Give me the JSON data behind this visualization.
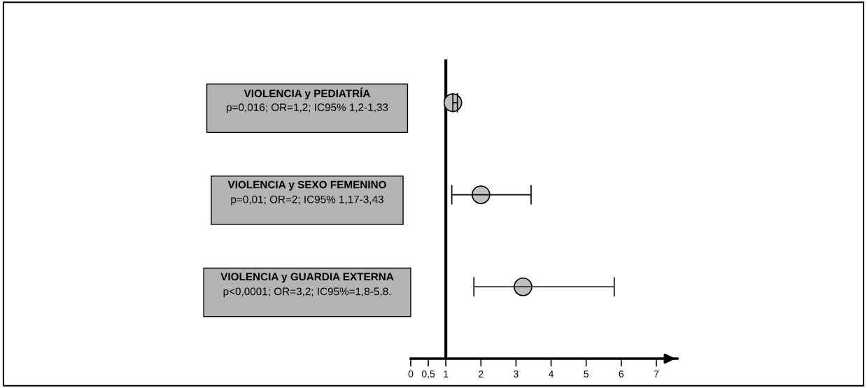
{
  "chart_data": {
    "type": "scatter",
    "orientation": "horizontal",
    "categories": [
      "VIOLENCIA y PEDIATRÍA",
      "VIOLENCIA y SEXO FEMENINO",
      "VIOLENCIA y GUARDIA EXTERNA"
    ],
    "values": [
      1.2,
      2,
      3.2
    ],
    "errors": [
      [
        1.2,
        1.33
      ],
      [
        1.17,
        3.43
      ],
      [
        1.8,
        5.8
      ]
    ],
    "color": "#c0c0c0",
    "marker": "circle",
    "annotations": [
      "p=0,016; OR=1,2; IC95% 1,2-1,33",
      "p=0,01; OR=2; IC95% 1,17-3,43",
      "p<0,0001; OR=3,2; IC95%=1,8-5,8."
    ],
    "ref_lines": [
      {
        "axis": "x",
        "value": 1,
        "color": "#000000"
      }
    ],
    "xlim": [
      0,
      7.6
    ],
    "xticks": [
      0,
      {
        "value": 0.5,
        "label": "0,5"
      },
      1,
      2,
      3,
      4,
      5,
      6,
      7
    ],
    "grid": false
  }
}
